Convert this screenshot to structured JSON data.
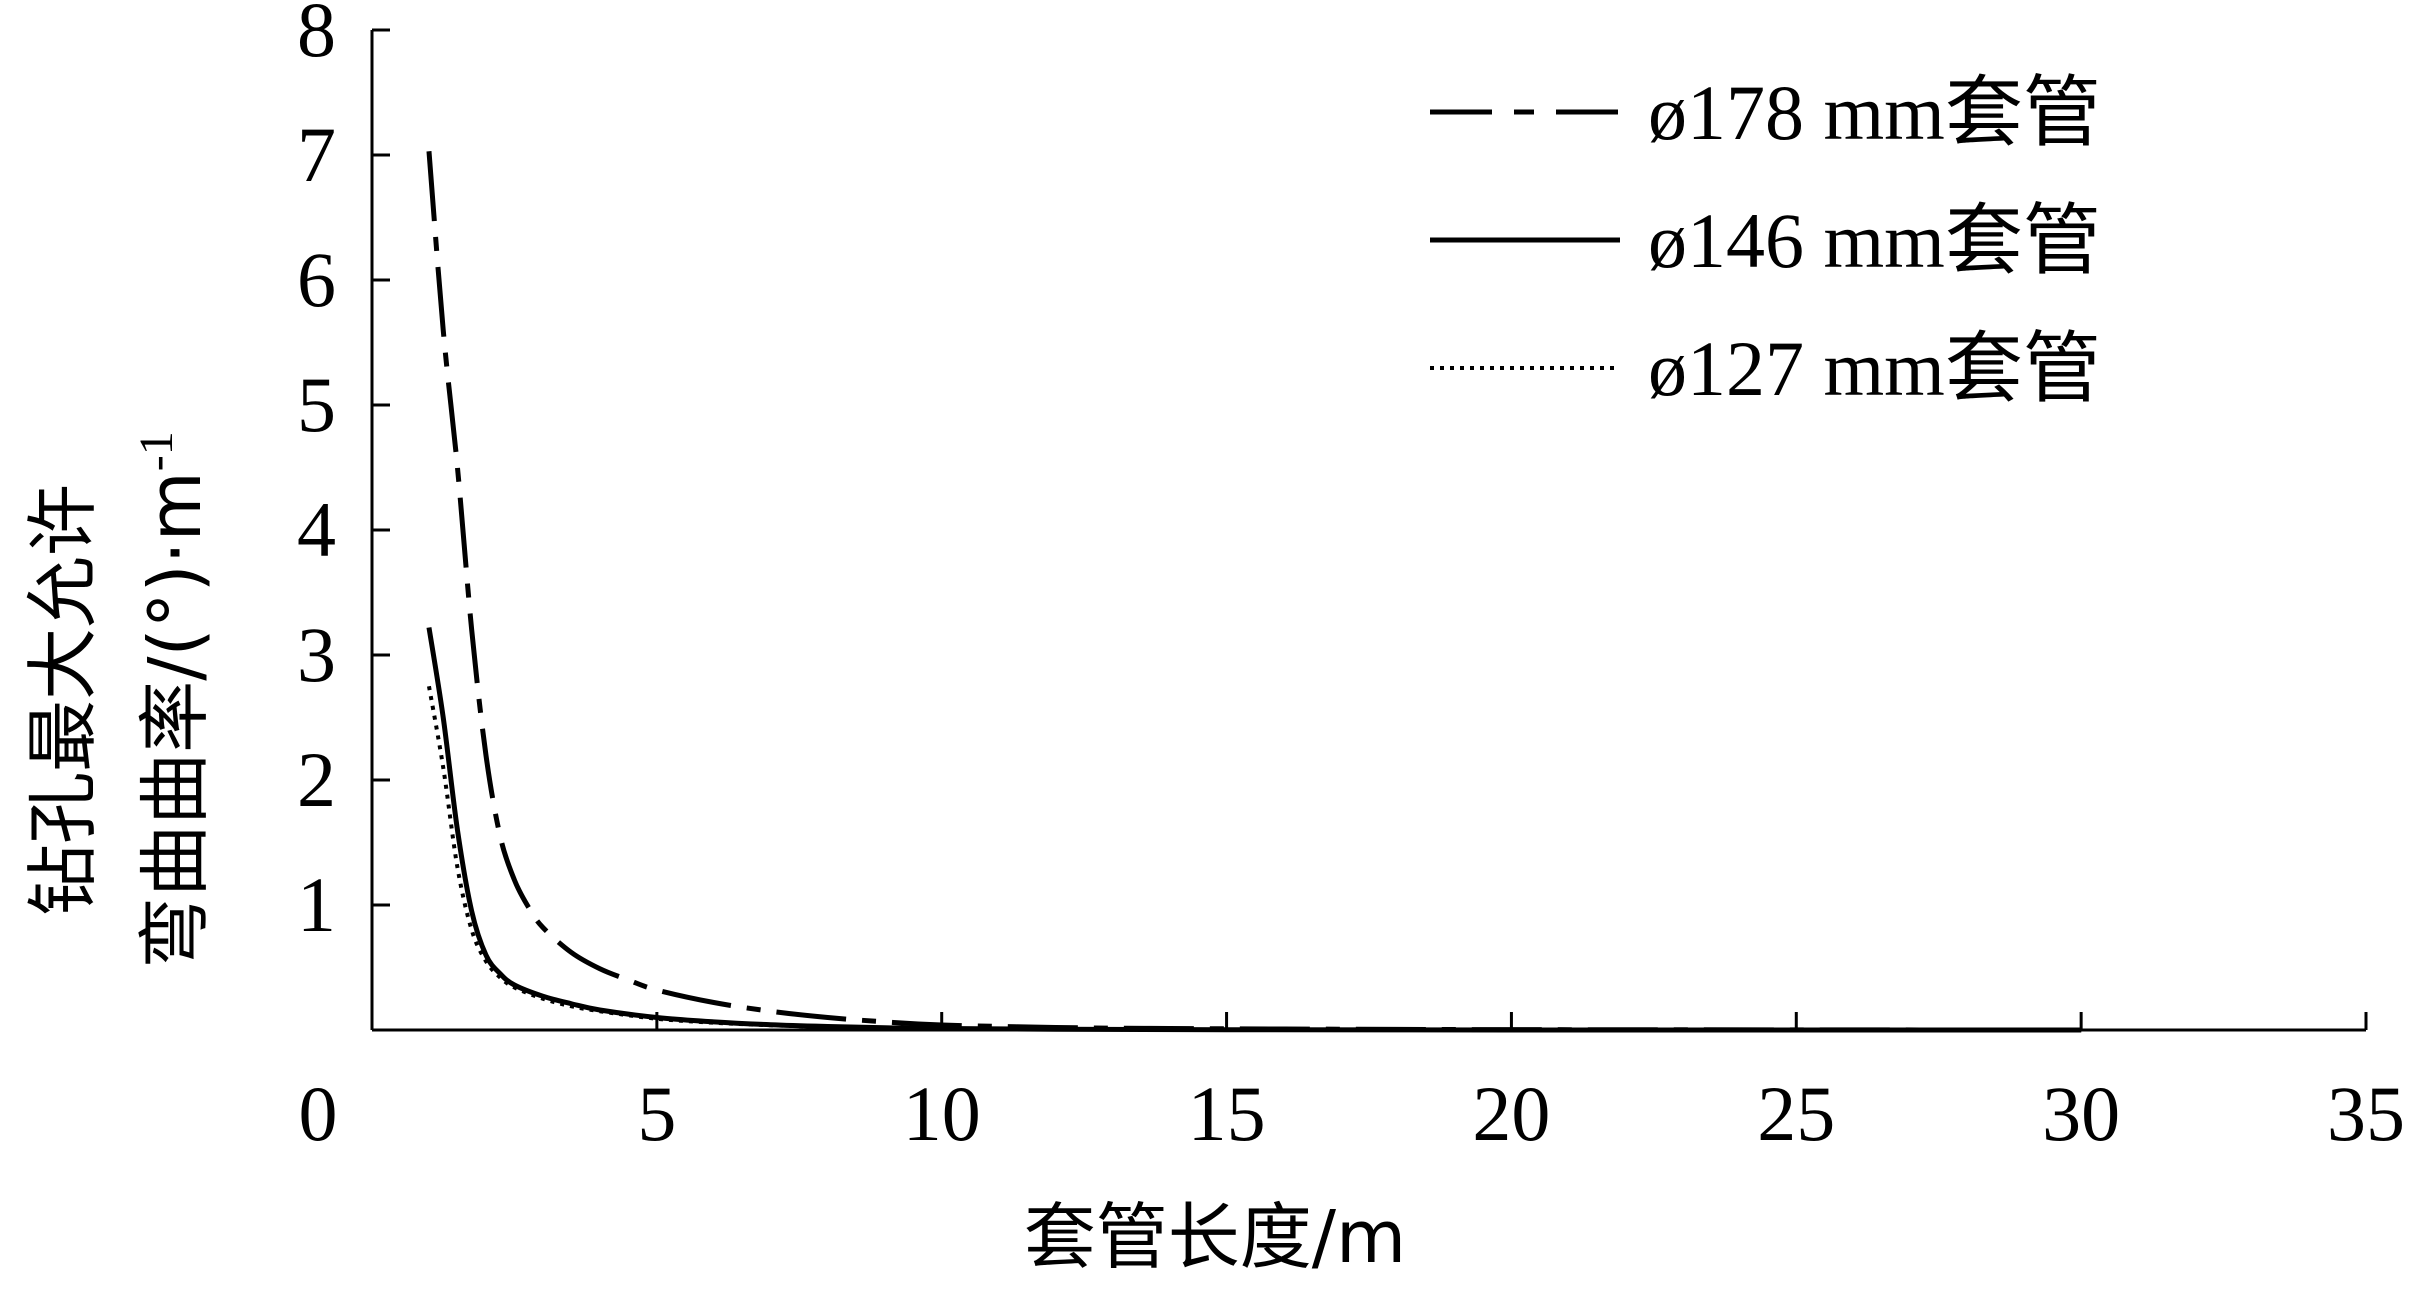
{
  "chart_data": {
    "type": "line",
    "xlabel": "套管长度/m",
    "ylabel_line1": "钻孔最大允许",
    "ylabel_line2": "弯曲曲率/(°)·m",
    "ylabel_superscript": "-1",
    "xlim": [
      0,
      35
    ],
    "ylim": [
      0,
      8
    ],
    "x_ticks": [
      0,
      5,
      10,
      15,
      20,
      25,
      30,
      35
    ],
    "y_ticks": [
      1,
      2,
      3,
      4,
      5,
      6,
      7,
      8
    ],
    "grid": false,
    "legend_position": "top-right",
    "series": [
      {
        "name": "ø178 mm套管",
        "style": "dash-dot",
        "x": [
          1.0,
          1.25,
          1.5,
          1.75,
          2.0,
          2.25,
          2.5,
          2.75,
          3.0,
          3.5,
          4.0,
          4.5,
          5.0,
          6.0,
          7.0,
          8.0,
          9.0,
          10.0,
          12.0,
          14.0,
          16.0,
          18.0,
          20.0,
          25.0,
          30.0
        ],
        "y": [
          7.03,
          5.6,
          4.5,
          3.2,
          2.2,
          1.55,
          1.2,
          0.98,
          0.82,
          0.62,
          0.49,
          0.4,
          0.32,
          0.22,
          0.15,
          0.1,
          0.065,
          0.04,
          0.02,
          0.012,
          0.008,
          0.005,
          0.003,
          0.001,
          0.0
        ]
      },
      {
        "name": "ø146 mm套管",
        "style": "solid",
        "x": [
          1.0,
          1.25,
          1.5,
          1.75,
          2.0,
          2.25,
          2.5,
          3.0,
          3.5,
          4.0,
          5.0,
          6.0,
          7.0,
          8.0,
          9.0,
          10.0,
          12.0,
          15.0,
          20.0,
          25.0,
          30.0
        ],
        "y": [
          3.22,
          2.5,
          1.6,
          0.95,
          0.6,
          0.45,
          0.36,
          0.27,
          0.21,
          0.16,
          0.1,
          0.065,
          0.042,
          0.028,
          0.018,
          0.012,
          0.006,
          0.002,
          0.0005,
          0.0,
          0.0
        ]
      },
      {
        "name": "ø127 mm套管",
        "style": "dotted",
        "x": [
          1.0,
          1.25,
          1.5,
          1.75,
          2.0,
          2.25,
          2.5,
          3.0,
          3.5,
          4.0,
          5.0,
          6.0,
          7.0,
          8.0,
          9.0,
          10.0,
          12.0,
          15.0,
          20.0,
          25.0,
          30.0
        ],
        "y": [
          2.75,
          2.1,
          1.3,
          0.8,
          0.55,
          0.42,
          0.34,
          0.25,
          0.19,
          0.15,
          0.09,
          0.058,
          0.038,
          0.025,
          0.016,
          0.01,
          0.005,
          0.002,
          0.0005,
          0.0,
          0.0
        ]
      }
    ]
  }
}
